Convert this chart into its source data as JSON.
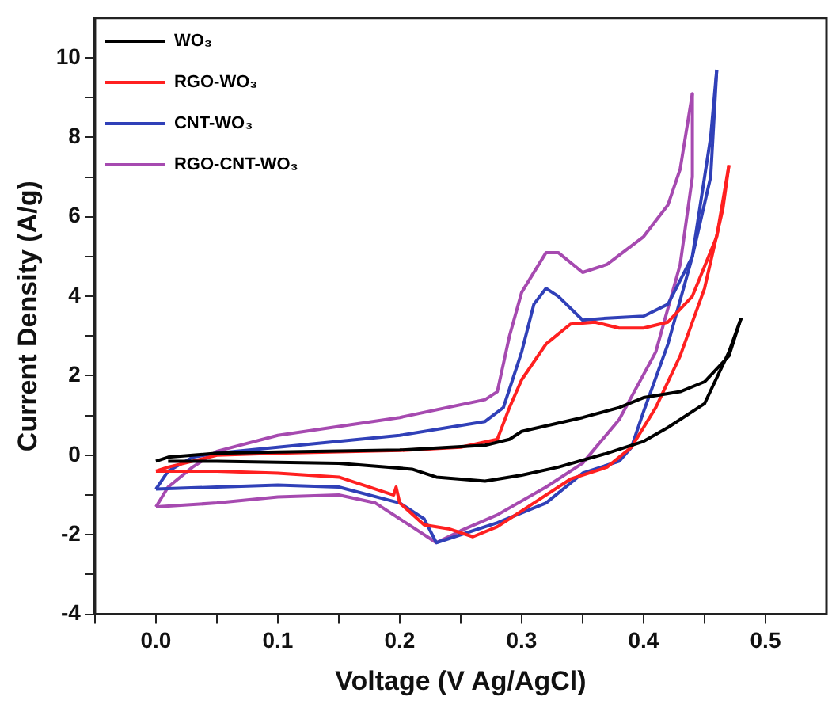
{
  "chart_data": {
    "type": "line",
    "xlabel": "Voltage (V Ag/AgCl)",
    "ylabel": "Current Density (A/g)",
    "xlim": [
      -0.05,
      0.55
    ],
    "ylim": [
      -4,
      11
    ],
    "xticks": [
      {
        "value": -0.05,
        "label": null
      },
      {
        "value": 0,
        "label": "0.0"
      },
      {
        "value": 0.05,
        "label": null
      },
      0.1,
      {
        "value": 0.15,
        "label": null
      },
      0.2,
      {
        "value": 0.25,
        "label": null
      },
      0.3,
      {
        "value": 0.35,
        "label": null
      },
      0.4,
      {
        "value": 0.45,
        "label": null
      },
      0.5
    ],
    "yticks": [
      -4,
      {
        "value": -3,
        "label": null
      },
      -2,
      {
        "value": -1,
        "label": null
      },
      0,
      {
        "value": 1,
        "label": null
      },
      2,
      {
        "value": 3,
        "label": null
      },
      4,
      {
        "value": 5,
        "label": null
      },
      6,
      {
        "value": 7,
        "label": null
      },
      8,
      {
        "value": 9,
        "label": null
      },
      10
    ],
    "legend": "top left",
    "grid": false,
    "marker": "none",
    "line_style": "solid",
    "series": [
      {
        "name": "WO₃",
        "color": "#000000",
        "x": [
          0,
          0.01,
          0.05,
          0.1,
          0.2,
          0.27,
          0.29,
          0.3,
          0.35,
          0.38,
          0.4,
          0.43,
          0.45,
          0.47,
          0.48
        ],
        "values": [
          -0.15,
          -0.05,
          0.05,
          0.08,
          0.13,
          0.25,
          0.4,
          0.6,
          0.95,
          1.2,
          1.45,
          1.6,
          1.85,
          2.5,
          3.45
        ]
      },
      {
        "color": "#000000",
        "x": [
          0.48,
          0.47,
          0.45,
          0.42,
          0.4,
          0.37,
          0.33,
          0.3,
          0.27,
          0.23,
          0.21,
          0.15,
          0.05,
          0.01
        ],
        "values": [
          3.45,
          2.6,
          1.3,
          0.7,
          0.35,
          0.05,
          -0.3,
          -0.5,
          -0.65,
          -0.55,
          -0.35,
          -0.2,
          -0.15,
          -0.15
        ]
      },
      {
        "name": "RGO-WO₃",
        "color": "#ff2020",
        "x": [
          0,
          0.01,
          0.05,
          0.1,
          0.2,
          0.25,
          0.28,
          0.29,
          0.3,
          0.32,
          0.34,
          0.36,
          0.38,
          0.4,
          0.42,
          0.44,
          0.46,
          0.47
        ],
        "values": [
          -0.4,
          -0.3,
          0.0,
          0.05,
          0.12,
          0.2,
          0.4,
          1.2,
          1.9,
          2.8,
          3.3,
          3.35,
          3.2,
          3.2,
          3.35,
          4.0,
          5.5,
          7.3
        ]
      },
      {
        "color": "#ff2020",
        "x": [
          0.47,
          0.465,
          0.45,
          0.43,
          0.41,
          0.39,
          0.37,
          0.34,
          0.31,
          0.28,
          0.26,
          0.24,
          0.22,
          0.2,
          0.197,
          0.195,
          0.15,
          0.1,
          0.05,
          0
        ],
        "values": [
          7.3,
          6.2,
          4.2,
          2.5,
          1.2,
          0.2,
          -0.3,
          -0.6,
          -1.2,
          -1.8,
          -2.05,
          -1.85,
          -1.75,
          -1.2,
          -0.8,
          -1.0,
          -0.55,
          -0.45,
          -0.4,
          -0.4
        ]
      },
      {
        "name": "CNT-WO₃",
        "color": "#3040b8",
        "x": [
          0,
          0.01,
          0.03,
          0.05,
          0.1,
          0.2,
          0.27,
          0.285,
          0.3,
          0.31,
          0.32,
          0.33,
          0.35,
          0.37,
          0.4,
          0.42,
          0.44,
          0.455,
          0.46
        ],
        "values": [
          -0.85,
          -0.4,
          -0.05,
          0.05,
          0.2,
          0.5,
          0.85,
          1.2,
          2.6,
          3.8,
          4.2,
          4.0,
          3.4,
          3.45,
          3.5,
          3.8,
          5.0,
          7.0,
          9.7
        ]
      },
      {
        "color": "#3040b8",
        "x": [
          0.46,
          0.455,
          0.44,
          0.42,
          0.4,
          0.39,
          0.38,
          0.35,
          0.32,
          0.28,
          0.24,
          0.23,
          0.22,
          0.2,
          0.15,
          0.1,
          0.05,
          0
        ],
        "values": [
          9.7,
          8.0,
          5.0,
          2.8,
          1.1,
          0.2,
          -0.15,
          -0.45,
          -1.2,
          -1.7,
          -2.1,
          -2.2,
          -1.6,
          -1.2,
          -0.8,
          -0.75,
          -0.8,
          -0.85
        ]
      },
      {
        "name": "RGO-CNT-WO₃",
        "color": "#a64ab0",
        "x": [
          0,
          0.01,
          0.03,
          0.05,
          0.1,
          0.2,
          0.27,
          0.28,
          0.29,
          0.3,
          0.32,
          0.33,
          0.35,
          0.37,
          0.4,
          0.42,
          0.43,
          0.44
        ],
        "values": [
          -1.3,
          -0.8,
          -0.3,
          0.1,
          0.5,
          0.95,
          1.4,
          1.6,
          3.0,
          4.1,
          5.1,
          5.1,
          4.6,
          4.8,
          5.5,
          6.3,
          7.2,
          9.1
        ]
      },
      {
        "color": "#a64ab0",
        "x": [
          0.44,
          0.44,
          0.43,
          0.41,
          0.38,
          0.35,
          0.32,
          0.28,
          0.25,
          0.23,
          0.21,
          0.18,
          0.15,
          0.1,
          0.05,
          0
        ],
        "values": [
          9.1,
          7.0,
          4.8,
          2.6,
          0.9,
          -0.2,
          -0.8,
          -1.5,
          -1.9,
          -2.2,
          -1.8,
          -1.2,
          -1.0,
          -1.05,
          -1.2,
          -1.3
        ]
      }
    ]
  }
}
